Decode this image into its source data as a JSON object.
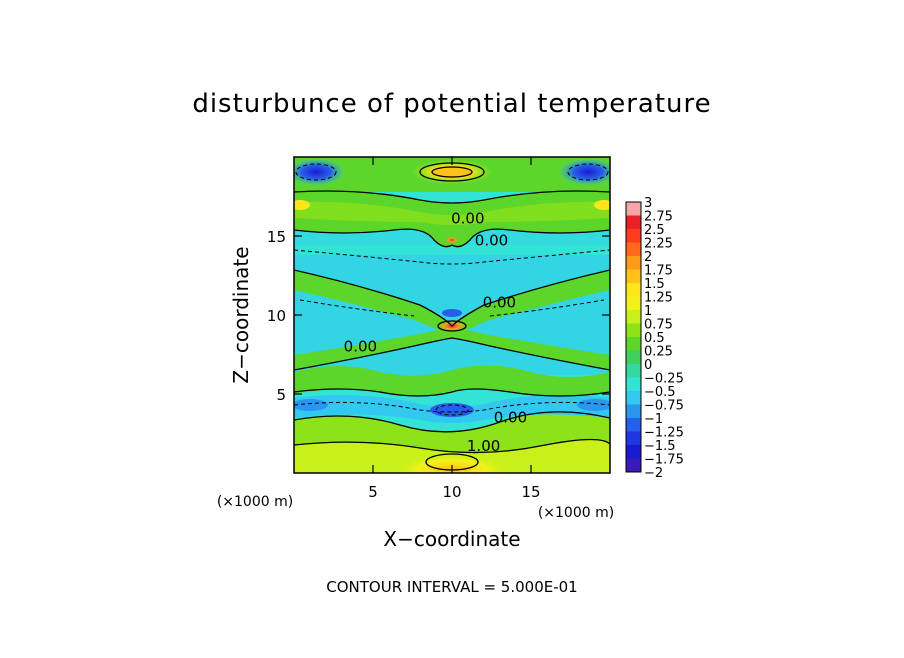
{
  "chart_data": {
    "type": "heatmap",
    "title": "disturbunce of potential temperature",
    "xlabel": "X−coordinate",
    "ylabel": "Z−coordinate",
    "x_unit": "(×1000 m)",
    "z_unit": "(×1000 m)",
    "xlim": [
      0,
      20
    ],
    "ylim": [
      0,
      20
    ],
    "x_ticks": [
      "5",
      "10",
      "15"
    ],
    "y_ticks": [
      "5",
      "10",
      "15"
    ],
    "colorbar_labels": [
      "3",
      "2.75",
      "2.5",
      "2.25",
      "2",
      "1.75",
      "1.5",
      "1.25",
      "1",
      "0.75",
      "0.5",
      "0.25",
      "0",
      "−0.25",
      "−0.5",
      "−0.75",
      "−1",
      "−1.25",
      "−1.5",
      "−1.75",
      "−2"
    ],
    "colorbar_colors": [
      "#f6a6a6",
      "#e8202a",
      "#ff3b1f",
      "#ff6a1a",
      "#ff9a1a",
      "#ffc21a",
      "#ffe61a",
      "#f2f21a",
      "#c8f01a",
      "#8ee21a",
      "#5cd62a",
      "#40d060",
      "#33d9a0",
      "#33e3d6",
      "#33c8f0",
      "#2a96f0",
      "#2660ea",
      "#1f36e0",
      "#1a1ad0",
      "#3a1ab8",
      "#6a1aa8"
    ],
    "contour_interval": 0.5,
    "contour_labels": [
      {
        "text": "0.00",
        "x": 11.0,
        "z": 16.1
      },
      {
        "text": "0.00",
        "x": 12.5,
        "z": 14.7
      },
      {
        "text": "0.00",
        "x": 13.0,
        "z": 10.8
      },
      {
        "text": "0.00",
        "x": 4.2,
        "z": 8.0
      },
      {
        "text": "0.00",
        "x": 13.7,
        "z": 3.5
      },
      {
        "text": "1.00",
        "x": 12.0,
        "z": 1.7
      }
    ]
  },
  "footer": {
    "contour_interval_text": "CONTOUR INTERVAL = 5.000E-01"
  }
}
